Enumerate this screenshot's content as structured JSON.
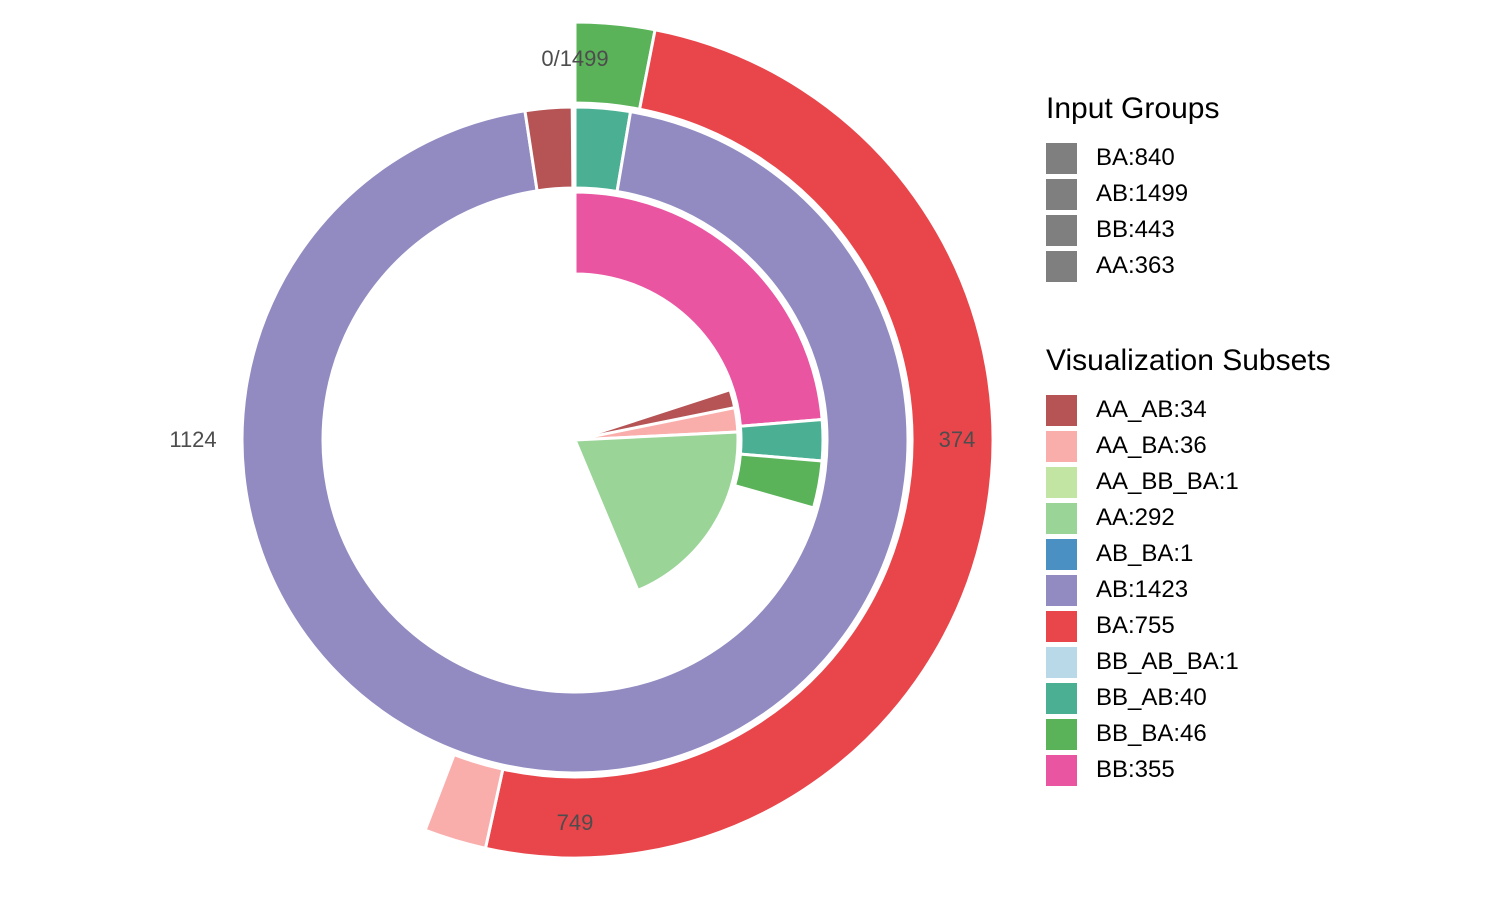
{
  "chart_data": {
    "type": "pie",
    "total": 1499,
    "axis_ticks": [
      "0/1499",
      "374",
      "749",
      "1124"
    ],
    "input_groups_title": "Input Groups",
    "input_groups": [
      {
        "label": "BA:840",
        "color": "#7f7f7f"
      },
      {
        "label": "AB:1499",
        "color": "#7f7f7f"
      },
      {
        "label": "BB:443",
        "color": "#7f7f7f"
      },
      {
        "label": "AA:363",
        "color": "#7f7f7f"
      }
    ],
    "subsets_title": "Visualization Subsets",
    "subsets": [
      {
        "label": "AA_AB:34",
        "name": "AA_AB",
        "value": 34,
        "color": "#b55355"
      },
      {
        "label": "AA_BA:36",
        "name": "AA_BA",
        "value": 36,
        "color": "#f9aeac"
      },
      {
        "label": "AA_BB_BA:1",
        "name": "AA_BB_BA",
        "value": 1,
        "color": "#c3e5a3"
      },
      {
        "label": "AA:292",
        "name": "AA",
        "value": 292,
        "color": "#9ad497"
      },
      {
        "label": "AB_BA:1",
        "name": "AB_BA",
        "value": 1,
        "color": "#4a90c2"
      },
      {
        "label": "AB:1423",
        "name": "AB",
        "value": 1423,
        "color": "#918bc1"
      },
      {
        "label": "BA:755",
        "name": "BA",
        "value": 755,
        "color": "#e8464b"
      },
      {
        "label": "BB_AB_BA:1",
        "name": "BB_AB_BA",
        "value": 1,
        "color": "#b9d8e8"
      },
      {
        "label": "BB_AB:40",
        "name": "BB_AB",
        "value": 40,
        "color": "#4bb093"
      },
      {
        "label": "BB_BA:46",
        "name": "BB_BA",
        "value": 46,
        "color": "#5ab259"
      },
      {
        "label": "BB:355",
        "name": "BB",
        "value": 355,
        "color": "#ea55a2"
      }
    ],
    "rings": [
      {
        "group": "BA",
        "segments": [
          {
            "subset": "BB_BA",
            "start": 0,
            "value": 46
          },
          {
            "subset": "BA",
            "start": 46,
            "value": 755
          },
          {
            "subset": "AA_BA",
            "start": 801,
            "value": 36
          }
        ]
      },
      {
        "group": "AB",
        "segments": [
          {
            "subset": "BB_AB",
            "start": 0,
            "value": 40
          },
          {
            "subset": "AB",
            "start": 40,
            "value": 1423
          },
          {
            "subset": "AA_AB",
            "start": 1463,
            "value": 34
          }
        ]
      },
      {
        "group": "BB",
        "segments": [
          {
            "subset": "BB",
            "start": 0,
            "value": 355
          },
          {
            "subset": "BB_AB",
            "start": 355,
            "value": 40
          },
          {
            "subset": "BB_BA",
            "start": 395,
            "value": 46
          }
        ]
      },
      {
        "group": "AA",
        "segments": [
          {
            "subset": "AA_AB",
            "start": 300,
            "value": 34
          },
          {
            "subset": "AA_BA",
            "start": 327,
            "value": 36
          },
          {
            "subset": "AA",
            "start": 363,
            "value": 292
          }
        ]
      }
    ]
  }
}
